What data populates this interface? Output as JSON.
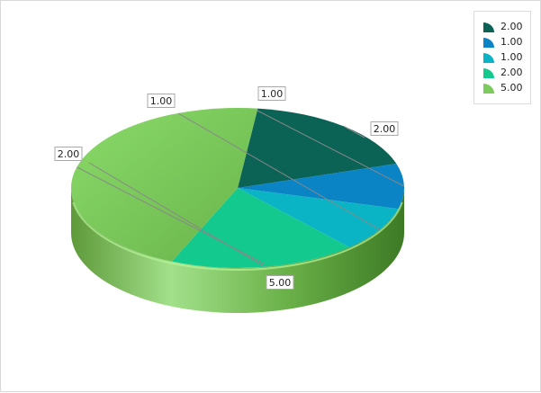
{
  "chart_data": {
    "type": "pie",
    "variant": "3d",
    "categories": [
      "",
      "",
      "",
      "",
      ""
    ],
    "values": [
      2,
      1,
      1,
      2,
      5
    ],
    "labels": [
      "2.00",
      "1.00",
      "1.00",
      "2.00",
      "5.00"
    ],
    "colors": [
      "#0b6355",
      "#0a84c4",
      "#0ab4c4",
      "#14c98d",
      "#7ccb5c"
    ],
    "side_colors": [
      "#064a40",
      "#066196",
      "#06899a",
      "#0e9a6c",
      "#4f9a38"
    ],
    "legend": {
      "position": "top-right",
      "entries": [
        "2.00",
        "1.00",
        "1.00",
        "2.00",
        "5.00"
      ]
    },
    "title": ""
  }
}
